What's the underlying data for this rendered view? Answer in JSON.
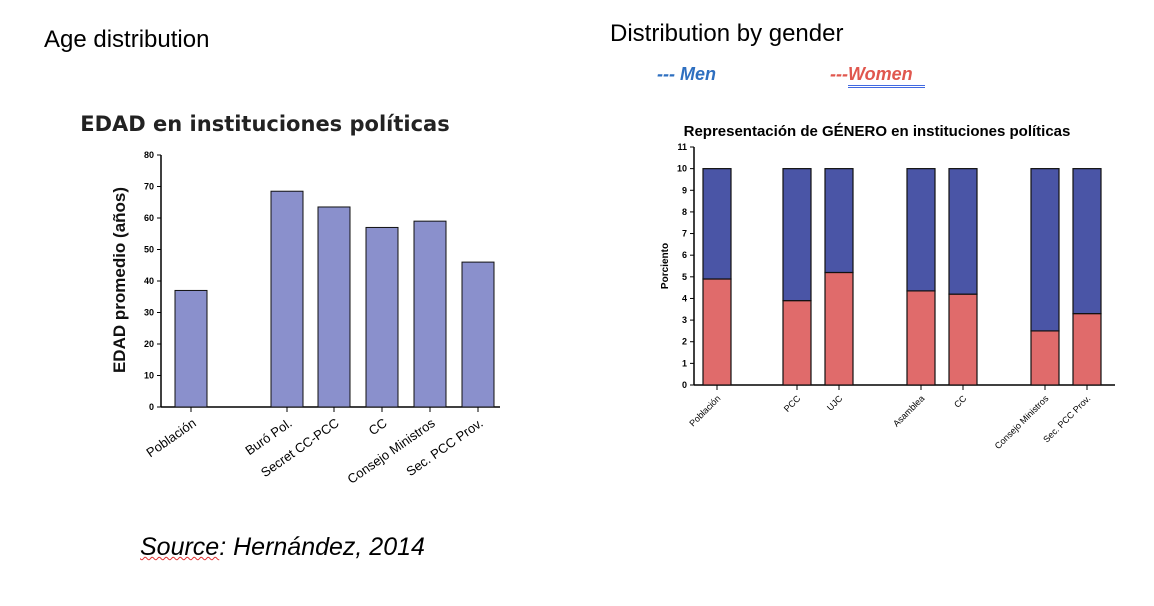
{
  "headings": {
    "left": "Age distribution",
    "right": "Distribution by gender"
  },
  "legend": {
    "men": "--- Men",
    "women_prefix": "---",
    "women_word": "Women",
    "men_color": "#2E6FC0",
    "women_color": "#E0574E"
  },
  "source": {
    "prefix": "Source",
    "rest": ": Hernández, 2014"
  },
  "colors": {
    "age_bar": "#8A90CC",
    "men_bar": "#4A55A6",
    "women_bar": "#E06B6B"
  },
  "chart_data": [
    {
      "type": "bar",
      "title": "EDAD en instituciones políticas",
      "xlabel": "",
      "ylabel": "EDAD promedio (años)",
      "ylim": [
        0,
        80
      ],
      "yticks": [
        "0",
        "10",
        "20",
        "30",
        "40",
        "50",
        "60",
        "70",
        "80"
      ],
      "categories": [
        "Población",
        "Buró Pol.",
        "Secret CC-PCC",
        "CC",
        "Consejo Ministros",
        "Sec. PCC Prov."
      ],
      "values": [
        37,
        68.5,
        63.5,
        57,
        59,
        46
      ]
    },
    {
      "type": "bar",
      "stacked": true,
      "title": "Representación de GÉNERO  en instituciones políticas",
      "xlabel": "",
      "ylabel": "Porciento",
      "ylim": [
        0,
        11
      ],
      "yticks": [
        "0",
        "1",
        "2",
        "3",
        "4",
        "5",
        "6",
        "7",
        "8",
        "9",
        "10",
        "11"
      ],
      "categories": [
        "Población",
        "PCC",
        "UJC",
        "Asamblea",
        "CC",
        "Consejo Ministros",
        "Sec. PCC Prov."
      ],
      "series": [
        {
          "name": "Women",
          "values": [
            4.9,
            3.9,
            5.2,
            4.35,
            4.2,
            2.5,
            3.3
          ]
        },
        {
          "name": "Men",
          "values": [
            5.1,
            6.1,
            4.8,
            5.65,
            5.8,
            7.5,
            6.7
          ]
        }
      ]
    }
  ]
}
